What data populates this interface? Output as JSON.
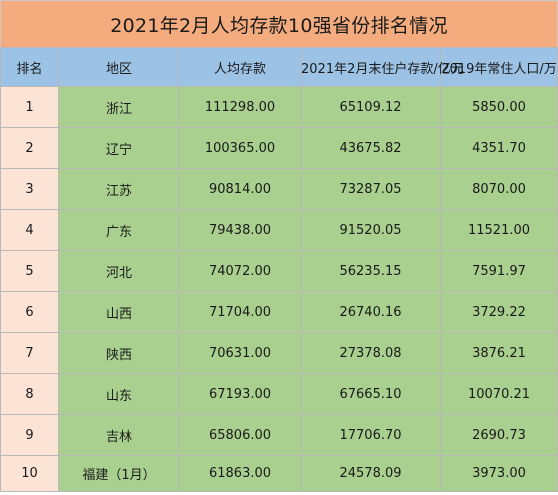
{
  "title": "2021年2月人均存款10强省份排名情况",
  "columns": [
    "排名",
    "地区",
    "人均存款",
    "2021年2月末住户存款/亿元",
    "2019年常住人口/万"
  ],
  "rows": [
    {
      "rank": "1",
      "region": "浙江",
      "per_capita": "111298.00",
      "deposits": "65109.12",
      "population": "5850.00"
    },
    {
      "rank": "2",
      "region": "辽宁",
      "per_capita": "100365.00",
      "deposits": "43675.82",
      "population": "4351.70"
    },
    {
      "rank": "3",
      "region": "江苏",
      "per_capita": "90814.00",
      "deposits": "73287.05",
      "population": "8070.00"
    },
    {
      "rank": "4",
      "region": "广东",
      "per_capita": "79438.00",
      "deposits": "91520.05",
      "population": "11521.00"
    },
    {
      "rank": "5",
      "region": "河北",
      "per_capita": "74072.00",
      "deposits": "56235.15",
      "population": "7591.97"
    },
    {
      "rank": "6",
      "region": "山西",
      "per_capita": "71704.00",
      "deposits": "26740.16",
      "population": "3729.22"
    },
    {
      "rank": "7",
      "region": "陕西",
      "per_capita": "70631.00",
      "deposits": "27378.08",
      "population": "3876.21"
    },
    {
      "rank": "8",
      "region": "山东",
      "per_capita": "67193.00",
      "deposits": "67665.10",
      "population": "10070.21"
    },
    {
      "rank": "9",
      "region": "吉林",
      "per_capita": "65806.00",
      "deposits": "17706.70",
      "population": "2690.73"
    },
    {
      "rank": "10",
      "region": "福建（1月）",
      "per_capita": "61863.00",
      "deposits": "24578.09",
      "population": "3973.00"
    }
  ],
  "colors": {
    "title_bg": "#f4ac7e",
    "header_bg": "#9cc3e5",
    "rank_bg": "#fbe4d5",
    "cell_bg": "#a9d08e"
  }
}
